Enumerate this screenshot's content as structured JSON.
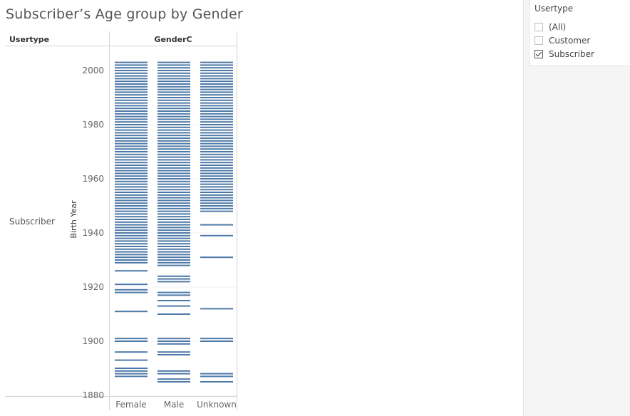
{
  "title": "Subscriber’s Age group by Gender",
  "filter": {
    "title": "Usertype",
    "options": [
      {
        "label": "(All)",
        "checked": false
      },
      {
        "label": "Customer",
        "checked": false
      },
      {
        "label": "Subscriber",
        "checked": true
      }
    ]
  },
  "chart_data": {
    "type": "bar",
    "column_header": "Usertype",
    "columns_title": "GenderC",
    "row_label": "Subscriber",
    "ylabel": "Birth Year",
    "ylim": [
      1878,
      2007
    ],
    "yticks": [
      1880,
      1900,
      1920,
      1940,
      1960,
      1980,
      2000
    ],
    "categories": [
      "Female",
      "Male",
      "Unknown"
    ],
    "mark_color": "#4e79a7",
    "series": [
      {
        "category": "Female",
        "birth_years_with_riders": [
          1887,
          1888,
          1889,
          1890,
          1893,
          1896,
          1900,
          1901,
          1911,
          1918,
          1919,
          1921,
          1926,
          1929,
          1930,
          1931,
          1932,
          1933,
          1934,
          1935,
          1936,
          1937,
          1938,
          1939,
          1940,
          1941,
          1942,
          1943,
          1944,
          1945,
          1946,
          1947,
          1948,
          1949,
          1950,
          1951,
          1952,
          1953,
          1954,
          1955,
          1956,
          1957,
          1958,
          1959,
          1960,
          1961,
          1962,
          1963,
          1964,
          1965,
          1966,
          1967,
          1968,
          1969,
          1970,
          1971,
          1972,
          1973,
          1974,
          1975,
          1976,
          1977,
          1978,
          1979,
          1980,
          1981,
          1982,
          1983,
          1984,
          1985,
          1986,
          1987,
          1988,
          1989,
          1990,
          1991,
          1992,
          1993,
          1994,
          1995,
          1996,
          1997,
          1998,
          1999,
          2000,
          2001,
          2002,
          2003
        ]
      },
      {
        "category": "Male",
        "birth_years_with_riders": [
          1885,
          1886,
          1888,
          1889,
          1895,
          1896,
          1899,
          1900,
          1901,
          1910,
          1913,
          1915,
          1917,
          1918,
          1922,
          1923,
          1924,
          1928,
          1929,
          1930,
          1931,
          1932,
          1933,
          1934,
          1935,
          1936,
          1937,
          1938,
          1939,
          1940,
          1941,
          1942,
          1943,
          1944,
          1945,
          1946,
          1947,
          1948,
          1949,
          1950,
          1951,
          1952,
          1953,
          1954,
          1955,
          1956,
          1957,
          1958,
          1959,
          1960,
          1961,
          1962,
          1963,
          1964,
          1965,
          1966,
          1967,
          1968,
          1969,
          1970,
          1971,
          1972,
          1973,
          1974,
          1975,
          1976,
          1977,
          1978,
          1979,
          1980,
          1981,
          1982,
          1983,
          1984,
          1985,
          1986,
          1987,
          1988,
          1989,
          1990,
          1991,
          1992,
          1993,
          1994,
          1995,
          1996,
          1997,
          1998,
          1999,
          2000,
          2001,
          2002,
          2003
        ]
      },
      {
        "category": "Unknown",
        "birth_years_with_riders": [
          1885,
          1887,
          1888,
          1900,
          1901,
          1912,
          1931,
          1939,
          1943,
          1948,
          1949,
          1950,
          1951,
          1952,
          1953,
          1954,
          1955,
          1956,
          1957,
          1958,
          1959,
          1960,
          1961,
          1962,
          1963,
          1964,
          1965,
          1966,
          1967,
          1968,
          1969,
          1970,
          1971,
          1972,
          1973,
          1974,
          1975,
          1976,
          1977,
          1978,
          1979,
          1980,
          1981,
          1982,
          1983,
          1984,
          1985,
          1986,
          1987,
          1988,
          1989,
          1990,
          1991,
          1992,
          1993,
          1994,
          1995,
          1996,
          1997,
          1998,
          1999,
          2000,
          2001,
          2002,
          2003
        ]
      }
    ]
  }
}
